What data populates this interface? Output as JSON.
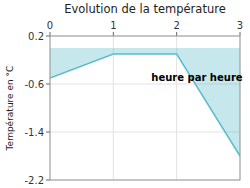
{
  "chart_data": {
    "type": "area",
    "title": "Evolution de la température",
    "y_label": "Température en °C",
    "annotations": [
      {
        "text": "heure par heure",
        "x": 1.6,
        "y": -0.38
      }
    ],
    "x": [
      0,
      1,
      2,
      3
    ],
    "values": [
      -0.5,
      -0.1,
      -0.1,
      -1.8
    ],
    "color": "#5bbccc",
    "xlim": [
      0,
      3
    ],
    "ylim": [
      -2.2,
      0.2
    ],
    "xticks": [
      0,
      1,
      2,
      3
    ],
    "yticks": [
      0.2,
      -0.6,
      -1.4,
      -2.2
    ],
    "grid": true
  }
}
